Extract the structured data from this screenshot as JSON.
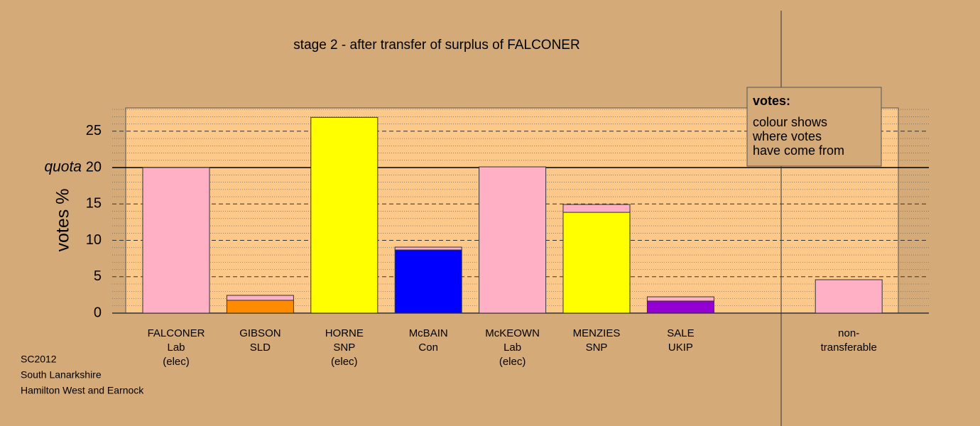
{
  "chart_data": {
    "type": "stacked_bar",
    "title": "stage 2 - after transfer of surplus of FALCONER",
    "y_label": "votes %",
    "categories": [
      [
        "FALCONER",
        "Lab",
        "(elec)"
      ],
      [
        "GIBSON",
        "SLD"
      ],
      [
        "HORNE",
        "SNP",
        "(elec)"
      ],
      [
        "McBAIN",
        "Con"
      ],
      [
        "McKEOWN",
        "Lab",
        "(elec)"
      ],
      [
        "MENZIES",
        "SNP"
      ],
      [
        "SALE",
        "UKIP"
      ],
      null,
      [
        "non-",
        "transferable"
      ]
    ],
    "series": [
      {
        "color": "#ff8c00",
        "values": [
          null,
          1.76,
          null,
          null,
          null,
          null,
          null,
          null,
          null
        ]
      },
      {
        "color": "#ffff00",
        "values": [
          null,
          null,
          26.9,
          null,
          null,
          13.85,
          null,
          null,
          null
        ]
      },
      {
        "color": "#0000ff",
        "values": [
          null,
          null,
          null,
          8.68,
          null,
          null,
          null,
          null,
          null
        ]
      },
      {
        "color": "#9400d3",
        "values": [
          null,
          null,
          null,
          null,
          null,
          null,
          1.66,
          null,
          null
        ]
      },
      {
        "color": "#ffb0c4",
        "values": [
          20,
          0.68,
          null,
          0.39,
          20.1,
          1.08,
          0.58,
          null,
          4.59
        ]
      }
    ],
    "ylim": [
      0,
      28.2
    ],
    "yticks": [
      0,
      5,
      10,
      15,
      20,
      25
    ],
    "minor_yticks": [
      1,
      2,
      3,
      4,
      6,
      7,
      8,
      9,
      11,
      12,
      13,
      14,
      16,
      17,
      18,
      19,
      21,
      22,
      23,
      24,
      26,
      27,
      28
    ],
    "grid": true,
    "quota": {
      "value": 20,
      "label": "quota"
    },
    "legend": {
      "title": "votes:",
      "lines": [
        "colour shows",
        "where votes",
        "have come from"
      ]
    },
    "footer": [
      "SC2012",
      "South Lanarkshire",
      "Hamilton West and Earnock"
    ]
  }
}
